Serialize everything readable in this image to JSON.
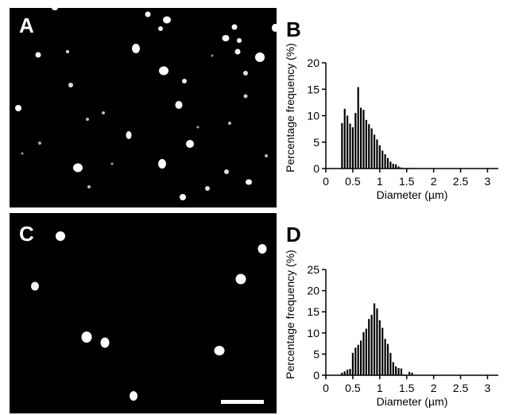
{
  "panels": {
    "a": "A",
    "b": "B",
    "c": "C",
    "d": "D"
  },
  "colors": {
    "micrograph_background": "#000000",
    "particles": "#ffffff",
    "bars": "#000000",
    "axes": "#000000"
  },
  "chart_data": [
    {
      "panel": "B",
      "type": "bar",
      "xlabel": "Diameter (µm)",
      "ylabel": "Percentage frequency (%)",
      "xlim": [
        0,
        3.2
      ],
      "ylim": [
        0,
        20
      ],
      "xticks": [
        0,
        0.5,
        1,
        1.5,
        2,
        2.5,
        3
      ],
      "xticklabels": [
        "0",
        "0.5",
        "1",
        "1.5",
        "2",
        "2.5",
        "3"
      ],
      "yticks": [
        0,
        5,
        10,
        15,
        20
      ],
      "bin_width": 0.05,
      "x": [
        0.3,
        0.35,
        0.4,
        0.45,
        0.5,
        0.55,
        0.6,
        0.65,
        0.7,
        0.75,
        0.8,
        0.85,
        0.9,
        0.95,
        1.0,
        1.05,
        1.1,
        1.15,
        1.2,
        1.25,
        1.3,
        1.35,
        1.4,
        1.45,
        1.5,
        1.55,
        1.6,
        1.65
      ],
      "values": [
        8.6,
        11.3,
        10.0,
        8.5,
        7.8,
        10.5,
        15.4,
        11.5,
        11.1,
        9.2,
        8.4,
        7.6,
        6.4,
        5.5,
        4.4,
        3.4,
        2.7,
        2.0,
        1.3,
        0.9,
        0.8,
        0.4,
        0.2,
        0.1,
        0.1,
        0.1,
        0.1,
        0.1
      ]
    },
    {
      "panel": "D",
      "type": "bar",
      "xlabel": "Diameter (µm)",
      "ylabel": "Percentage frequency (%)",
      "xlim": [
        0,
        3.2
      ],
      "ylim": [
        0,
        25
      ],
      "xticks": [
        0,
        0.5,
        1,
        1.5,
        2,
        2.5,
        3
      ],
      "xticklabels": [
        "0",
        "0.5",
        "1",
        "1.5",
        "2",
        "2.5",
        "3"
      ],
      "yticks": [
        0,
        5,
        10,
        15,
        20,
        25
      ],
      "bin_width": 0.05,
      "x": [
        0.3,
        0.35,
        0.4,
        0.45,
        0.5,
        0.55,
        0.6,
        0.65,
        0.7,
        0.75,
        0.8,
        0.85,
        0.9,
        0.95,
        1.0,
        1.05,
        1.1,
        1.15,
        1.2,
        1.25,
        1.3,
        1.35,
        1.4,
        1.45,
        1.5,
        1.55,
        1.6,
        1.65,
        1.7,
        1.75,
        1.8,
        1.85,
        1.9,
        1.95,
        2.0,
        2.05
      ],
      "values": [
        0.6,
        0.9,
        1.3,
        1.5,
        5.3,
        6.5,
        7.2,
        8.2,
        10.2,
        11.0,
        13.3,
        14.3,
        17.0,
        15.8,
        13.0,
        11.2,
        8.6,
        7.4,
        5.3,
        3.1,
        2.1,
        1.7,
        1.6,
        0.2,
        0.1,
        0.8,
        0.6,
        0.1,
        0.1,
        0.1,
        0.1,
        0.1,
        0.1,
        0.1,
        0.1,
        0.1
      ]
    }
  ]
}
